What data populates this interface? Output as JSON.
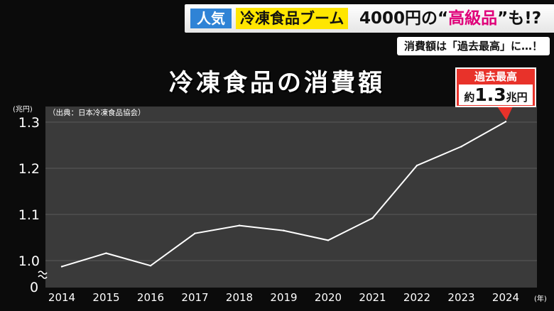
{
  "banner": {
    "category": "人気",
    "topic": "冷凍食品ブーム",
    "headline_before": "4000円の“",
    "headline_highlight": "高級品",
    "headline_after": "”も!?",
    "subtext": "消費額は「過去最高」に…！"
  },
  "record_badge": {
    "title": "過去最高",
    "prefix": "約",
    "value": "1.3",
    "unit": "兆円"
  },
  "chart_data": {
    "type": "line",
    "title": "冷凍食品の消費額",
    "source": "（出典：日本冷凍食品協会）",
    "y_unit_label": "(兆円)",
    "x_unit_label": "(年)",
    "x": [
      "2014",
      "2015",
      "2016",
      "2017",
      "2018",
      "2019",
      "2020",
      "2021",
      "2022",
      "2023",
      "2024"
    ],
    "series": [
      {
        "values": [
          0.987,
          1.016,
          0.989,
          1.059,
          1.076,
          1.065,
          1.044,
          1.092,
          1.206,
          1.247,
          1.301
        ]
      }
    ],
    "y_ticks": [
      "1.3",
      "1.2",
      "1.1",
      "1.0"
    ],
    "y_tick_values": [
      1.3,
      1.2,
      1.1,
      1.0
    ],
    "y_zero_label": "0",
    "y_break": true,
    "ylim": [
      0.95,
      1.35
    ],
    "grid": true,
    "colors": {
      "plot_bg": "#3a3a3a",
      "line": "#ffffff",
      "grid": "#5a5a5a",
      "badge": "#e8322a"
    }
  }
}
